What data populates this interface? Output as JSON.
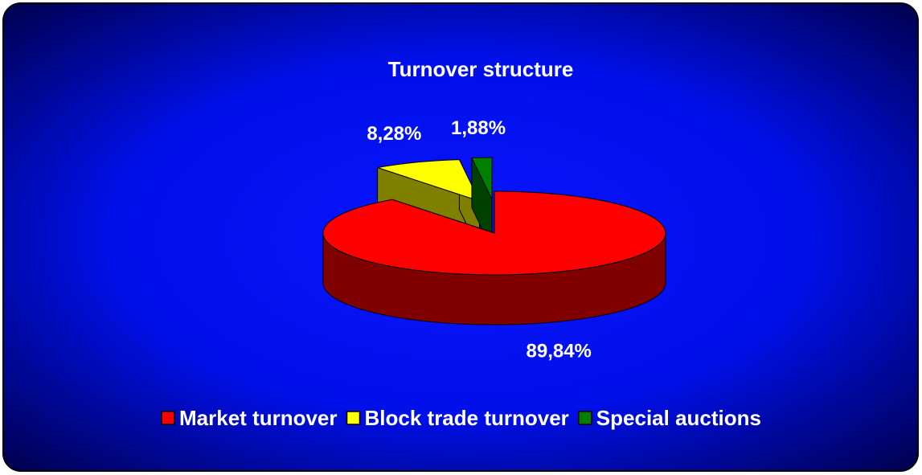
{
  "chart_data": {
    "type": "pie",
    "title": "Turnover structure",
    "categories": [
      "Market turnover",
      "Block trade turnover",
      "Special auctions"
    ],
    "values": [
      89.84,
      8.28,
      1.88
    ],
    "value_labels": [
      "89,84%",
      "8,28%",
      "1,88%"
    ],
    "colors": [
      "#ff0000",
      "#ffff00",
      "#008000"
    ],
    "legend": "bottom"
  }
}
